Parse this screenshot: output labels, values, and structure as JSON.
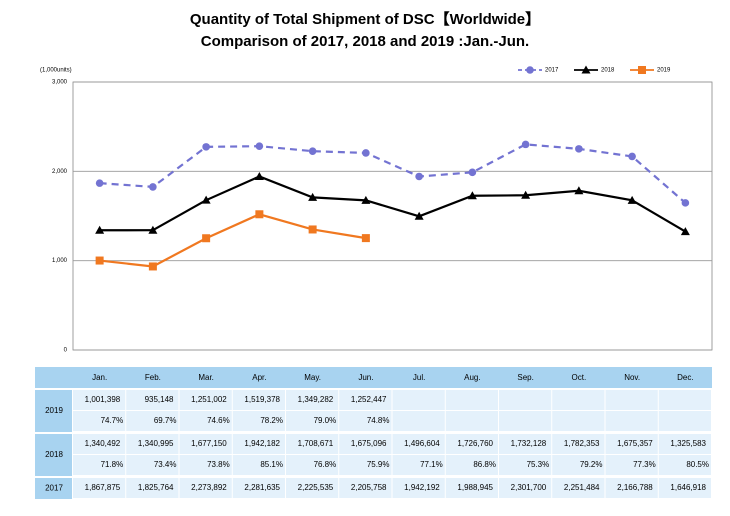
{
  "chart_data": {
    "type": "line",
    "title": "Quantity of Total Shipment of DSC【Worldwide】",
    "subtitle": "Comparison of 2017, 2018 and 2019 :Jan.-Jun.",
    "y_label": "(1,000units)",
    "categories": [
      "Jan.",
      "Feb.",
      "Mar.",
      "Apr.",
      "May.",
      "Jun.",
      "Jul.",
      "Aug.",
      "Sep.",
      "Oct.",
      "Nov.",
      "Dec."
    ],
    "ylim": [
      0,
      3000
    ],
    "yticks": [
      0,
      {
        "value": 1000,
        "label": "1,000"
      },
      {
        "value": 2000,
        "label": "2,000"
      },
      {
        "value": 3000,
        "label": "3,000"
      }
    ],
    "grid": true,
    "legend": "top-right",
    "series": [
      {
        "name": "2017",
        "color": "#7373d2",
        "dash": true,
        "marker": "circle",
        "values": [
          1867.875,
          1825.764,
          2273.892,
          2281.635,
          2225.535,
          2205.758,
          1942.192,
          1988.945,
          2301.7,
          2251.484,
          2166.788,
          1646.918
        ],
        "value_labels": [
          "1,867,875",
          "1,825,764",
          "2,273,892",
          "2,281,635",
          "2,225,535",
          "2,205,758",
          "1,942,192",
          "1,988,945",
          "2,301,700",
          "2,251,484",
          "2,166,788",
          "1,646,918"
        ]
      },
      {
        "name": "2018",
        "color": "#000000",
        "dash": false,
        "marker": "triangle",
        "values": [
          1340.492,
          1340.995,
          1677.15,
          1942.182,
          1708.671,
          1675.096,
          1496.604,
          1726.76,
          1732.128,
          1782.353,
          1675.357,
          1325.583
        ],
        "value_labels": [
          "1,340,492",
          "1,340,995",
          "1,677,150",
          "1,942,182",
          "1,708,671",
          "1,675,096",
          "1,496,604",
          "1,726,760",
          "1,732,128",
          "1,782,353",
          "1,675,357",
          "1,325,583"
        ],
        "yoy": [
          "71.8%",
          "73.4%",
          "73.8%",
          "85.1%",
          "76.8%",
          "75.9%",
          "77.1%",
          "86.8%",
          "75.3%",
          "79.2%",
          "77.3%",
          "80.5%"
        ]
      },
      {
        "name": "2019",
        "color": "#f07820",
        "dash": false,
        "marker": "square",
        "values": [
          1001.398,
          935.148,
          1251.002,
          1519.378,
          1349.282,
          1252.447,
          null,
          null,
          null,
          null,
          null,
          null
        ],
        "value_labels": [
          "1,001,398",
          "935,148",
          "1,251,002",
          "1,519,378",
          "1,349,282",
          "1,252,447",
          null,
          null,
          null,
          null,
          null,
          null
        ],
        "yoy": [
          "74.7%",
          "69.7%",
          "74.6%",
          "78.2%",
          "79.0%",
          "74.8%",
          null,
          null,
          null,
          null,
          null,
          null
        ]
      }
    ]
  }
}
